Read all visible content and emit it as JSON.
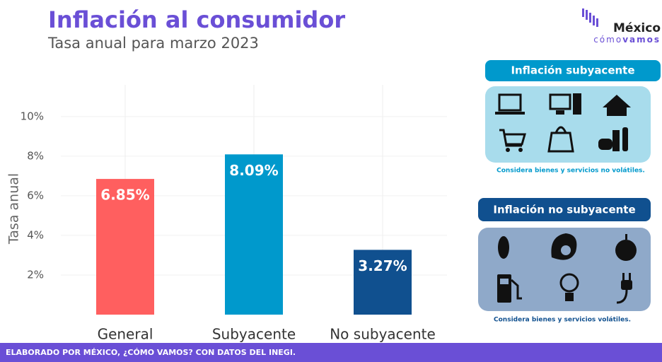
{
  "chart_data": {
    "type": "bar",
    "title": "Inflación al consumidor",
    "subtitle": "Tasa anual para marzo 2023",
    "y_label": "Tasa anual",
    "categories": [
      "General",
      "Subyacente",
      "No subyacente"
    ],
    "values": [
      6.85,
      8.09,
      3.27
    ],
    "value_labels": [
      "6.85%",
      "8.09%",
      "3.27%"
    ],
    "colors": [
      "#ff5f5f",
      "#0099cc",
      "#10508f"
    ],
    "ylim": [
      0,
      11.6
    ],
    "yticks": [
      {
        "value": 2,
        "label": "2%"
      },
      {
        "value": 4,
        "label": "4%"
      },
      {
        "value": 6,
        "label": "6%"
      },
      {
        "value": 8,
        "label": "8%"
      },
      {
        "value": 10,
        "label": "10%"
      }
    ],
    "grid": true
  },
  "logo": {
    "name": "México",
    "tag1": "cómo",
    "tag2": "vamos"
  },
  "panels": [
    {
      "title": "Inflación subyacente",
      "note": "Considera bienes y servicios no volátiles."
    },
    {
      "title": "Inflación no subyacente",
      "note": "Considera bienes y servicios volátiles."
    }
  ],
  "footer": "ELABORADO POR MÉXICO, ¿CÓMO VAMOS? CON DATOS DEL INEGI."
}
